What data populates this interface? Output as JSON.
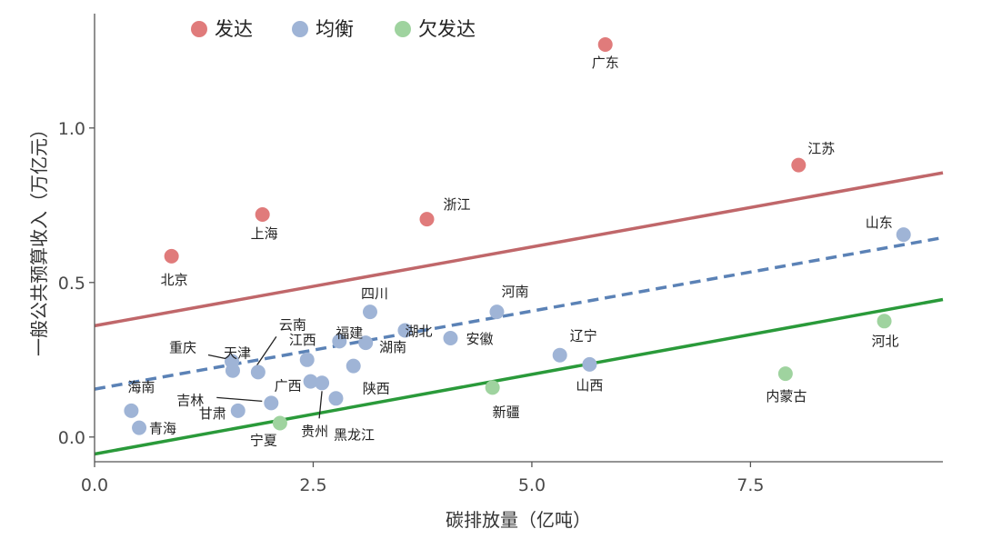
{
  "chart_data": {
    "type": "scatter",
    "title": "",
    "xlabel": "碳排放量（亿吨）",
    "ylabel": "一般公共预算收入（万亿元）",
    "xlim": [
      0,
      9.7
    ],
    "ylim": [
      -0.08,
      1.37
    ],
    "x_ticks": [
      {
        "value": 0,
        "label": "0.0"
      },
      {
        "value": 2.5,
        "label": "2.5"
      },
      {
        "value": 5,
        "label": "5.0"
      },
      {
        "value": 7.5,
        "label": "7.5"
      }
    ],
    "y_ticks": [
      {
        "value": 0,
        "label": "0.0"
      },
      {
        "value": 0.5,
        "label": "0.5"
      },
      {
        "value": 1,
        "label": "1.0"
      }
    ],
    "grid": false,
    "legend_position": "top-left",
    "categories": [
      {
        "key": "developed",
        "name": "发达",
        "color": "#e07b7b"
      },
      {
        "key": "balanced",
        "name": "均衡",
        "color": "#9fb4d6"
      },
      {
        "key": "underdeveloped",
        "name": "欠发达",
        "color": "#9fd39f"
      }
    ],
    "points": [
      {
        "name": "广东",
        "x": 5.84,
        "y": 1.27,
        "group": "developed"
      },
      {
        "name": "江苏",
        "x": 8.05,
        "y": 0.88,
        "group": "developed"
      },
      {
        "name": "浙江",
        "x": 3.8,
        "y": 0.705,
        "group": "developed"
      },
      {
        "name": "上海",
        "x": 1.92,
        "y": 0.72,
        "group": "developed"
      },
      {
        "name": "北京",
        "x": 0.88,
        "y": 0.585,
        "group": "developed"
      },
      {
        "name": "山东",
        "x": 9.25,
        "y": 0.655,
        "group": "balanced"
      },
      {
        "name": "河南",
        "x": 4.6,
        "y": 0.405,
        "group": "balanced"
      },
      {
        "name": "四川",
        "x": 3.15,
        "y": 0.405,
        "group": "balanced"
      },
      {
        "name": "湖北",
        "x": 3.55,
        "y": 0.345,
        "group": "balanced"
      },
      {
        "name": "福建",
        "x": 2.8,
        "y": 0.31,
        "group": "balanced"
      },
      {
        "name": "湖南",
        "x": 3.1,
        "y": 0.305,
        "group": "balanced"
      },
      {
        "name": "安徽",
        "x": 4.07,
        "y": 0.32,
        "group": "balanced"
      },
      {
        "name": "江西",
        "x": 2.43,
        "y": 0.25,
        "group": "balanced"
      },
      {
        "name": "陕西",
        "x": 2.96,
        "y": 0.23,
        "group": "balanced"
      },
      {
        "name": "重庆",
        "x": 1.57,
        "y": 0.245,
        "group": "balanced"
      },
      {
        "name": "天津",
        "x": 1.58,
        "y": 0.215,
        "group": "balanced"
      },
      {
        "name": "云南",
        "x": 1.87,
        "y": 0.21,
        "group": "balanced"
      },
      {
        "name": "广西",
        "x": 2.47,
        "y": 0.18,
        "group": "balanced"
      },
      {
        "name": "贵州",
        "x": 2.6,
        "y": 0.175,
        "group": "balanced"
      },
      {
        "name": "黑龙江",
        "x": 2.76,
        "y": 0.125,
        "group": "balanced"
      },
      {
        "name": "吉林",
        "x": 2.02,
        "y": 0.11,
        "group": "balanced"
      },
      {
        "name": "甘肃",
        "x": 1.64,
        "y": 0.085,
        "group": "balanced"
      },
      {
        "name": "海南",
        "x": 0.42,
        "y": 0.085,
        "group": "balanced"
      },
      {
        "name": "青海",
        "x": 0.51,
        "y": 0.03,
        "group": "balanced"
      },
      {
        "name": "辽宁",
        "x": 5.32,
        "y": 0.265,
        "group": "balanced"
      },
      {
        "name": "山西",
        "x": 5.66,
        "y": 0.235,
        "group": "balanced"
      },
      {
        "name": "河北",
        "x": 9.03,
        "y": 0.375,
        "group": "underdeveloped"
      },
      {
        "name": "内蒙古",
        "x": 7.9,
        "y": 0.205,
        "group": "underdeveloped"
      },
      {
        "name": "新疆",
        "x": 4.55,
        "y": 0.16,
        "group": "underdeveloped"
      },
      {
        "name": "宁夏",
        "x": 2.12,
        "y": 0.045,
        "group": "underdeveloped"
      }
    ],
    "trend_lines": [
      {
        "group": "developed",
        "style": "solid",
        "color": "#c0676a",
        "x": [
          0,
          9.7
        ],
        "y": [
          0.36,
          0.855
        ]
      },
      {
        "group": "balanced",
        "style": "dashed",
        "color": "#5b82b6",
        "x": [
          0,
          9.7
        ],
        "y": [
          0.155,
          0.645
        ]
      },
      {
        "group": "underdeveloped",
        "style": "solid",
        "color": "#2a9a3a",
        "x": [
          0,
          9.7
        ],
        "y": [
          -0.055,
          0.445
        ]
      }
    ]
  }
}
